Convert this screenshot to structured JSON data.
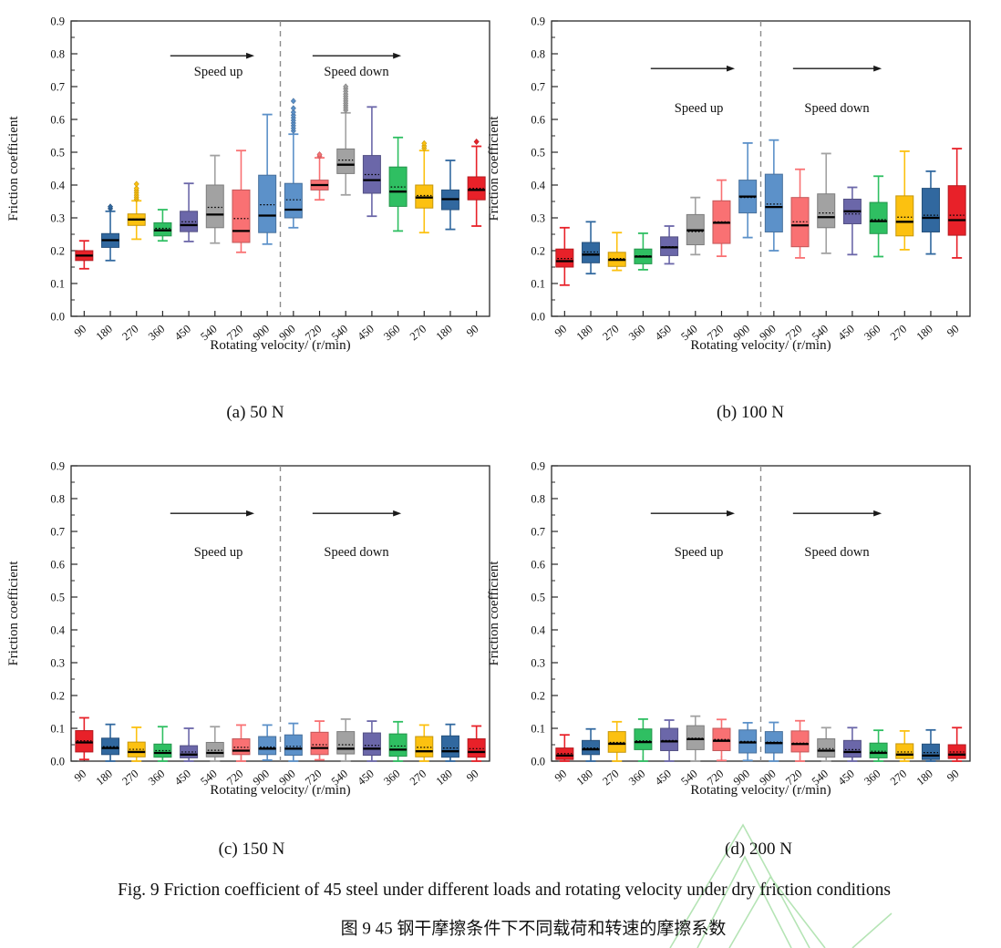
{
  "figure": {
    "caption_en": "Fig. 9 Friction coefficient of 45 steel under different loads and rotating velocity under dry friction conditions",
    "caption_zh": "图 9 45 钢干摩擦条件下不同载荷和转速的摩擦系数"
  },
  "palette": {
    "red": "#e82129",
    "dark_blue": "#31689f",
    "yellow": "#fcc110",
    "green": "#2fbf62",
    "purple": "#6b67a9",
    "gray": "#a2a2a2",
    "salmon": "#f97173",
    "light_blue": "#5c91c9",
    "axis": "#2a2a2a",
    "median": "#000000",
    "dashed_line": "#8c8c8c",
    "watermark": "#a9e0a9"
  },
  "chart_data": [
    {
      "type": "boxplot",
      "id": "a",
      "subplot_label": "(a) 50 N",
      "xlabel": "Rotating velocity/ (r/min)",
      "ylabel": "Friction coefficient",
      "ylim": [
        0.0,
        0.9
      ],
      "ytick_step": 0.1,
      "grid": false,
      "annotations": {
        "speed_up": "Speed up",
        "speed_down": "Speed down",
        "arrow_y": 0.794,
        "text_y": 0.734
      },
      "categories": [
        "90",
        "180",
        "270",
        "360",
        "450",
        "540",
        "720",
        "900",
        "900",
        "720",
        "540",
        "450",
        "360",
        "270",
        "180",
        "90"
      ],
      "colors": [
        "red",
        "dark_blue",
        "yellow",
        "green",
        "purple",
        "gray",
        "salmon",
        "light_blue",
        "light_blue",
        "salmon",
        "gray",
        "purple",
        "green",
        "yellow",
        "dark_blue",
        "red"
      ],
      "boxes": [
        {
          "whislo": 0.145,
          "q1": 0.17,
          "med": 0.185,
          "q3": 0.2,
          "whishi": 0.23,
          "mean": 0.186,
          "outliers": []
        },
        {
          "whislo": 0.17,
          "q1": 0.21,
          "med": 0.232,
          "q3": 0.252,
          "whishi": 0.32,
          "mean": 0.233,
          "outliers": [
            0.328,
            0.334
          ]
        },
        {
          "whislo": 0.235,
          "q1": 0.277,
          "med": 0.295,
          "q3": 0.312,
          "whishi": 0.352,
          "mean": 0.296,
          "outliers": [
            0.357,
            0.363,
            0.369,
            0.376,
            0.383,
            0.39,
            0.403
          ]
        },
        {
          "whislo": 0.23,
          "q1": 0.245,
          "med": 0.262,
          "q3": 0.285,
          "whishi": 0.325,
          "mean": 0.268,
          "outliers": []
        },
        {
          "whislo": 0.228,
          "q1": 0.258,
          "med": 0.278,
          "q3": 0.32,
          "whishi": 0.405,
          "mean": 0.288,
          "outliers": []
        },
        {
          "whislo": 0.223,
          "q1": 0.27,
          "med": 0.31,
          "q3": 0.4,
          "whishi": 0.49,
          "mean": 0.332,
          "outliers": []
        },
        {
          "whislo": 0.195,
          "q1": 0.225,
          "med": 0.26,
          "q3": 0.385,
          "whishi": 0.505,
          "mean": 0.298,
          "outliers": []
        },
        {
          "whislo": 0.22,
          "q1": 0.255,
          "med": 0.307,
          "q3": 0.43,
          "whishi": 0.615,
          "mean": 0.34,
          "outliers": []
        },
        {
          "whislo": 0.27,
          "q1": 0.3,
          "med": 0.325,
          "q3": 0.405,
          "whishi": 0.555,
          "mean": 0.355,
          "outliers": [
            0.565,
            0.573,
            0.581,
            0.589,
            0.597,
            0.605,
            0.613,
            0.622,
            0.634,
            0.656
          ]
        },
        {
          "whislo": 0.355,
          "q1": 0.385,
          "med": 0.4,
          "q3": 0.415,
          "whishi": 0.483,
          "mean": 0.401,
          "outliers": [
            0.488,
            0.493
          ]
        },
        {
          "whislo": 0.37,
          "q1": 0.435,
          "med": 0.462,
          "q3": 0.51,
          "whishi": 0.62,
          "mean": 0.476,
          "outliers": [
            0.628,
            0.635,
            0.642,
            0.649,
            0.656,
            0.663,
            0.67,
            0.677,
            0.685,
            0.693,
            0.7
          ]
        },
        {
          "whislo": 0.305,
          "q1": 0.375,
          "med": 0.415,
          "q3": 0.49,
          "whishi": 0.638,
          "mean": 0.432,
          "outliers": []
        },
        {
          "whislo": 0.26,
          "q1": 0.335,
          "med": 0.38,
          "q3": 0.455,
          "whishi": 0.545,
          "mean": 0.394,
          "outliers": []
        },
        {
          "whislo": 0.255,
          "q1": 0.33,
          "med": 0.362,
          "q3": 0.4,
          "whishi": 0.505,
          "mean": 0.368,
          "outliers": [
            0.512,
            0.519,
            0.527
          ]
        },
        {
          "whislo": 0.265,
          "q1": 0.325,
          "med": 0.357,
          "q3": 0.385,
          "whishi": 0.475,
          "mean": 0.358,
          "outliers": []
        },
        {
          "whislo": 0.275,
          "q1": 0.355,
          "med": 0.385,
          "q3": 0.425,
          "whishi": 0.518,
          "mean": 0.39,
          "outliers": [
            0.532
          ]
        }
      ]
    },
    {
      "type": "boxplot",
      "id": "b",
      "subplot_label": "(b) 100 N",
      "xlabel": "Rotating velocity/ (r/min)",
      "ylabel": "Friction coefficient",
      "ylim": [
        0.0,
        0.9
      ],
      "ytick_step": 0.1,
      "grid": false,
      "annotations": {
        "speed_up": "Speed up",
        "speed_down": "Speed down",
        "arrow_y": 0.755,
        "text_y": 0.622
      },
      "categories": [
        "90",
        "180",
        "270",
        "360",
        "450",
        "540",
        "720",
        "900",
        "900",
        "720",
        "540",
        "450",
        "360",
        "270",
        "180",
        "90"
      ],
      "colors": [
        "red",
        "dark_blue",
        "yellow",
        "green",
        "purple",
        "gray",
        "salmon",
        "light_blue",
        "light_blue",
        "salmon",
        "gray",
        "purple",
        "green",
        "yellow",
        "dark_blue",
        "red"
      ],
      "boxes": [
        {
          "whislo": 0.095,
          "q1": 0.15,
          "med": 0.168,
          "q3": 0.205,
          "whishi": 0.27,
          "mean": 0.176,
          "outliers": []
        },
        {
          "whislo": 0.13,
          "q1": 0.163,
          "med": 0.188,
          "q3": 0.225,
          "whishi": 0.288,
          "mean": 0.196,
          "outliers": []
        },
        {
          "whislo": 0.14,
          "q1": 0.152,
          "med": 0.172,
          "q3": 0.195,
          "whishi": 0.255,
          "mean": 0.176,
          "outliers": []
        },
        {
          "whislo": 0.142,
          "q1": 0.16,
          "med": 0.182,
          "q3": 0.205,
          "whishi": 0.253,
          "mean": 0.184,
          "outliers": []
        },
        {
          "whislo": 0.16,
          "q1": 0.185,
          "med": 0.21,
          "q3": 0.242,
          "whishi": 0.275,
          "mean": 0.212,
          "outliers": []
        },
        {
          "whislo": 0.188,
          "q1": 0.218,
          "med": 0.262,
          "q3": 0.31,
          "whishi": 0.362,
          "mean": 0.258,
          "outliers": []
        },
        {
          "whislo": 0.183,
          "q1": 0.222,
          "med": 0.285,
          "q3": 0.352,
          "whishi": 0.415,
          "mean": 0.288,
          "outliers": []
        },
        {
          "whislo": 0.24,
          "q1": 0.315,
          "med": 0.365,
          "q3": 0.415,
          "whishi": 0.528,
          "mean": 0.362,
          "outliers": []
        },
        {
          "whislo": 0.2,
          "q1": 0.257,
          "med": 0.333,
          "q3": 0.433,
          "whishi": 0.537,
          "mean": 0.342,
          "outliers": []
        },
        {
          "whislo": 0.178,
          "q1": 0.212,
          "med": 0.277,
          "q3": 0.362,
          "whishi": 0.448,
          "mean": 0.288,
          "outliers": []
        },
        {
          "whislo": 0.192,
          "q1": 0.27,
          "med": 0.302,
          "q3": 0.373,
          "whishi": 0.496,
          "mean": 0.315,
          "outliers": []
        },
        {
          "whislo": 0.188,
          "q1": 0.282,
          "med": 0.32,
          "q3": 0.357,
          "whishi": 0.393,
          "mean": 0.312,
          "outliers": []
        },
        {
          "whislo": 0.182,
          "q1": 0.252,
          "med": 0.29,
          "q3": 0.347,
          "whishi": 0.427,
          "mean": 0.295,
          "outliers": []
        },
        {
          "whislo": 0.203,
          "q1": 0.245,
          "med": 0.288,
          "q3": 0.367,
          "whishi": 0.503,
          "mean": 0.302,
          "outliers": []
        },
        {
          "whislo": 0.19,
          "q1": 0.257,
          "med": 0.3,
          "q3": 0.39,
          "whishi": 0.442,
          "mean": 0.308,
          "outliers": []
        },
        {
          "whislo": 0.178,
          "q1": 0.247,
          "med": 0.293,
          "q3": 0.398,
          "whishi": 0.511,
          "mean": 0.308,
          "outliers": []
        }
      ]
    },
    {
      "type": "boxplot",
      "id": "c",
      "subplot_label": "(c) 150 N",
      "xlabel": "Rotating velocity/ (r/min)",
      "ylabel": "Friction coefficient",
      "ylim": [
        0.0,
        0.9
      ],
      "ytick_step": 0.1,
      "grid": false,
      "annotations": {
        "speed_up": "Speed up",
        "speed_down": "Speed down",
        "arrow_y": 0.755,
        "text_y": 0.625
      },
      "categories": [
        "90",
        "180",
        "270",
        "360",
        "450",
        "540",
        "720",
        "900",
        "900",
        "720",
        "540",
        "450",
        "360",
        "270",
        "180",
        "90"
      ],
      "colors": [
        "red",
        "dark_blue",
        "yellow",
        "green",
        "purple",
        "gray",
        "salmon",
        "light_blue",
        "light_blue",
        "salmon",
        "gray",
        "purple",
        "green",
        "yellow",
        "dark_blue",
        "red"
      ],
      "boxes": [
        {
          "whislo": 0.005,
          "q1": 0.028,
          "med": 0.057,
          "q3": 0.093,
          "whishi": 0.132,
          "mean": 0.062,
          "outliers": []
        },
        {
          "whislo": 0.0,
          "q1": 0.02,
          "med": 0.04,
          "q3": 0.07,
          "whishi": 0.112,
          "mean": 0.044,
          "outliers": []
        },
        {
          "whislo": 0.0,
          "q1": 0.013,
          "med": 0.028,
          "q3": 0.058,
          "whishi": 0.103,
          "mean": 0.036,
          "outliers": []
        },
        {
          "whislo": 0.0,
          "q1": 0.012,
          "med": 0.025,
          "q3": 0.052,
          "whishi": 0.105,
          "mean": 0.032,
          "outliers": []
        },
        {
          "whislo": 0.0,
          "q1": 0.01,
          "med": 0.02,
          "q3": 0.047,
          "whishi": 0.1,
          "mean": 0.028,
          "outliers": []
        },
        {
          "whislo": 0.0,
          "q1": 0.013,
          "med": 0.025,
          "q3": 0.057,
          "whishi": 0.105,
          "mean": 0.033,
          "outliers": []
        },
        {
          "whislo": 0.0,
          "q1": 0.02,
          "med": 0.032,
          "q3": 0.068,
          "whishi": 0.11,
          "mean": 0.042,
          "outliers": []
        },
        {
          "whislo": 0.003,
          "q1": 0.02,
          "med": 0.038,
          "q3": 0.075,
          "whishi": 0.11,
          "mean": 0.043,
          "outliers": []
        },
        {
          "whislo": 0.0,
          "q1": 0.018,
          "med": 0.038,
          "q3": 0.08,
          "whishi": 0.115,
          "mean": 0.045,
          "outliers": []
        },
        {
          "whislo": 0.004,
          "q1": 0.02,
          "med": 0.04,
          "q3": 0.088,
          "whishi": 0.122,
          "mean": 0.05,
          "outliers": []
        },
        {
          "whislo": 0.0,
          "q1": 0.022,
          "med": 0.038,
          "q3": 0.09,
          "whishi": 0.128,
          "mean": 0.05,
          "outliers": []
        },
        {
          "whislo": 0.0,
          "q1": 0.018,
          "med": 0.038,
          "q3": 0.086,
          "whishi": 0.122,
          "mean": 0.048,
          "outliers": []
        },
        {
          "whislo": 0.0,
          "q1": 0.015,
          "med": 0.035,
          "q3": 0.083,
          "whishi": 0.12,
          "mean": 0.046,
          "outliers": []
        },
        {
          "whislo": 0.0,
          "q1": 0.013,
          "med": 0.03,
          "q3": 0.075,
          "whishi": 0.11,
          "mean": 0.042,
          "outliers": []
        },
        {
          "whislo": 0.0,
          "q1": 0.012,
          "med": 0.03,
          "q3": 0.077,
          "whishi": 0.112,
          "mean": 0.04,
          "outliers": []
        },
        {
          "whislo": 0.0,
          "q1": 0.012,
          "med": 0.028,
          "q3": 0.068,
          "whishi": 0.107,
          "mean": 0.038,
          "outliers": []
        }
      ]
    },
    {
      "type": "boxplot",
      "id": "d",
      "subplot_label": "(d) 200 N",
      "xlabel": "Rotating velocity/ (r/min)",
      "ylabel": "Friction coefficient",
      "ylim": [
        0.0,
        0.9
      ],
      "ytick_step": 0.1,
      "grid": false,
      "annotations": {
        "speed_up": "Speed up",
        "speed_down": "Speed down",
        "arrow_y": 0.755,
        "text_y": 0.625
      },
      "categories": [
        "90",
        "180",
        "270",
        "360",
        "450",
        "540",
        "720",
        "900",
        "900",
        "720",
        "540",
        "450",
        "360",
        "270",
        "180",
        "90"
      ],
      "colors": [
        "red",
        "dark_blue",
        "yellow",
        "green",
        "purple",
        "gray",
        "salmon",
        "light_blue",
        "light_blue",
        "salmon",
        "gray",
        "purple",
        "green",
        "yellow",
        "dark_blue",
        "red"
      ],
      "boxes": [
        {
          "whislo": 0.0,
          "q1": 0.005,
          "med": 0.017,
          "q3": 0.04,
          "whishi": 0.08,
          "mean": 0.023,
          "outliers": []
        },
        {
          "whislo": 0.0,
          "q1": 0.02,
          "med": 0.036,
          "q3": 0.063,
          "whishi": 0.098,
          "mean": 0.04,
          "outliers": []
        },
        {
          "whislo": 0.0,
          "q1": 0.027,
          "med": 0.053,
          "q3": 0.09,
          "whishi": 0.12,
          "mean": 0.057,
          "outliers": []
        },
        {
          "whislo": 0.0,
          "q1": 0.035,
          "med": 0.058,
          "q3": 0.098,
          "whishi": 0.128,
          "mean": 0.062,
          "outliers": []
        },
        {
          "whislo": 0.0,
          "q1": 0.032,
          "med": 0.06,
          "q3": 0.1,
          "whishi": 0.125,
          "mean": 0.063,
          "outliers": []
        },
        {
          "whislo": 0.0,
          "q1": 0.035,
          "med": 0.067,
          "q3": 0.108,
          "whishi": 0.137,
          "mean": 0.07,
          "outliers": []
        },
        {
          "whislo": 0.002,
          "q1": 0.032,
          "med": 0.062,
          "q3": 0.1,
          "whishi": 0.127,
          "mean": 0.066,
          "outliers": []
        },
        {
          "whislo": 0.002,
          "q1": 0.025,
          "med": 0.057,
          "q3": 0.095,
          "whishi": 0.117,
          "mean": 0.06,
          "outliers": []
        },
        {
          "whislo": 0.0,
          "q1": 0.025,
          "med": 0.055,
          "q3": 0.09,
          "whishi": 0.118,
          "mean": 0.058,
          "outliers": []
        },
        {
          "whislo": 0.0,
          "q1": 0.028,
          "med": 0.052,
          "q3": 0.092,
          "whishi": 0.123,
          "mean": 0.055,
          "outliers": []
        },
        {
          "whislo": 0.0,
          "q1": 0.012,
          "med": 0.032,
          "q3": 0.068,
          "whishi": 0.102,
          "mean": 0.038,
          "outliers": []
        },
        {
          "whislo": 0.0,
          "q1": 0.012,
          "med": 0.028,
          "q3": 0.063,
          "whishi": 0.102,
          "mean": 0.035,
          "outliers": []
        },
        {
          "whislo": 0.0,
          "q1": 0.01,
          "med": 0.025,
          "q3": 0.055,
          "whishi": 0.094,
          "mean": 0.03,
          "outliers": []
        },
        {
          "whislo": 0.0,
          "q1": 0.008,
          "med": 0.02,
          "q3": 0.053,
          "whishi": 0.092,
          "mean": 0.028,
          "outliers": []
        },
        {
          "whislo": 0.0,
          "q1": 0.005,
          "med": 0.017,
          "q3": 0.052,
          "whishi": 0.095,
          "mean": 0.026,
          "outliers": []
        },
        {
          "whislo": 0.0,
          "q1": 0.008,
          "med": 0.02,
          "q3": 0.05,
          "whishi": 0.102,
          "mean": 0.028,
          "outliers": []
        }
      ]
    }
  ]
}
